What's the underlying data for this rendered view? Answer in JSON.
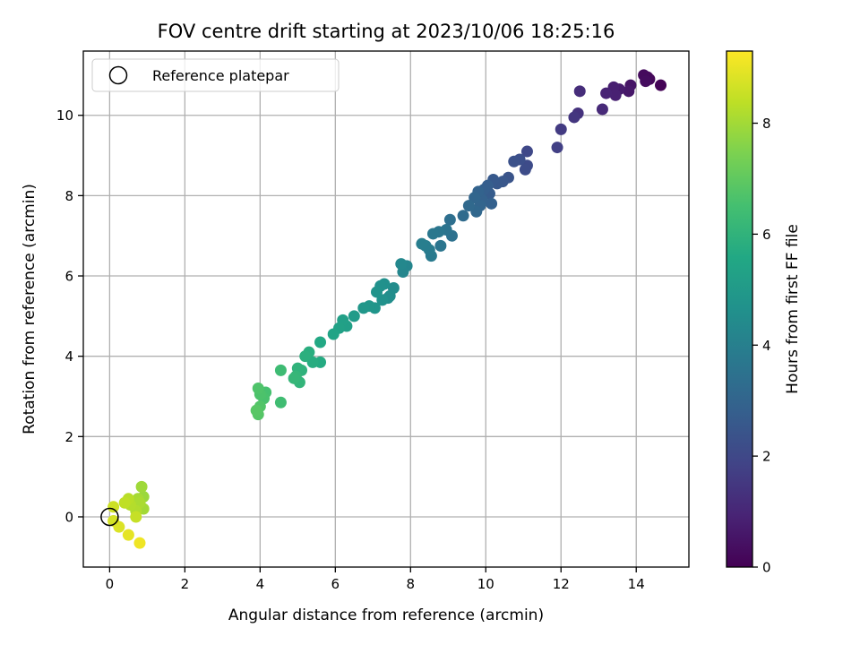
{
  "chart_data": {
    "type": "scatter",
    "title": "FOV centre drift starting at 2023/10/06 18:25:16",
    "xlabel": "Angular distance from reference (arcmin)",
    "ylabel": "Rotation from reference (arcmin)",
    "xlim": [
      -0.7,
      15.4
    ],
    "ylim": [
      -1.25,
      11.6
    ],
    "xticks": [
      0,
      2,
      4,
      6,
      8,
      10,
      12,
      14
    ],
    "yticks": [
      0,
      2,
      4,
      6,
      8,
      10
    ],
    "grid": true,
    "legend": {
      "placement": "top-left",
      "entries": [
        "Reference platepar"
      ]
    },
    "reference_point": {
      "x": 0,
      "y": 0
    },
    "colorbar": {
      "label": "Hours from first FF file",
      "range": [
        0,
        9.3
      ],
      "ticks": [
        0,
        2,
        4,
        6,
        8
      ],
      "colormap": "viridis"
    },
    "points": [
      [
        14.65,
        10.75,
        0.05
      ],
      [
        14.35,
        10.9,
        0.15
      ],
      [
        14.3,
        10.95,
        0.2
      ],
      [
        14.2,
        11.0,
        0.25
      ],
      [
        14.25,
        10.85,
        0.3
      ],
      [
        13.85,
        10.75,
        0.5
      ],
      [
        13.8,
        10.6,
        0.6
      ],
      [
        13.55,
        10.65,
        0.7
      ],
      [
        13.4,
        10.7,
        0.8
      ],
      [
        13.45,
        10.5,
        0.85
      ],
      [
        13.2,
        10.55,
        0.9
      ],
      [
        13.1,
        10.15,
        1.1
      ],
      [
        12.5,
        10.6,
        1.2
      ],
      [
        12.45,
        10.05,
        1.35
      ],
      [
        12.35,
        9.95,
        1.45
      ],
      [
        12.0,
        9.65,
        1.6
      ],
      [
        11.9,
        9.2,
        1.75
      ],
      [
        11.1,
        9.1,
        2.0
      ],
      [
        11.1,
        8.75,
        2.1
      ],
      [
        11.05,
        8.65,
        2.15
      ],
      [
        10.9,
        8.9,
        2.25
      ],
      [
        10.75,
        8.85,
        2.3
      ],
      [
        10.6,
        8.45,
        2.4
      ],
      [
        10.45,
        8.35,
        2.5
      ],
      [
        10.3,
        8.3,
        2.55
      ],
      [
        10.2,
        8.4,
        2.6
      ],
      [
        10.1,
        8.05,
        2.7
      ],
      [
        10.05,
        8.25,
        2.75
      ],
      [
        9.95,
        8.15,
        2.8
      ],
      [
        10.15,
        7.8,
        2.85
      ],
      [
        9.9,
        7.9,
        2.9
      ],
      [
        9.8,
        8.1,
        2.95
      ],
      [
        9.85,
        7.75,
        3.0
      ],
      [
        9.7,
        7.95,
        3.05
      ],
      [
        9.75,
        7.6,
        3.1
      ],
      [
        9.55,
        7.75,
        3.15
      ],
      [
        9.4,
        7.5,
        3.25
      ],
      [
        9.05,
        7.4,
        3.4
      ],
      [
        9.1,
        7.0,
        3.45
      ],
      [
        8.95,
        7.15,
        3.55
      ],
      [
        8.8,
        6.75,
        3.6
      ],
      [
        8.75,
        7.1,
        3.65
      ],
      [
        8.6,
        7.05,
        3.7
      ],
      [
        8.55,
        6.5,
        3.8
      ],
      [
        8.5,
        6.65,
        3.85
      ],
      [
        8.4,
        6.75,
        3.9
      ],
      [
        8.3,
        6.8,
        3.95
      ],
      [
        7.9,
        6.25,
        4.2
      ],
      [
        7.8,
        6.1,
        4.25
      ],
      [
        7.75,
        6.3,
        4.3
      ],
      [
        7.55,
        5.7,
        4.45
      ],
      [
        7.45,
        5.5,
        4.5
      ],
      [
        7.4,
        5.45,
        4.55
      ],
      [
        7.3,
        5.8,
        4.6
      ],
      [
        7.2,
        5.75,
        4.65
      ],
      [
        7.25,
        5.4,
        4.7
      ],
      [
        7.1,
        5.6,
        4.75
      ],
      [
        7.05,
        5.2,
        4.8
      ],
      [
        6.9,
        5.25,
        4.85
      ],
      [
        6.75,
        5.2,
        4.9
      ],
      [
        6.5,
        5.0,
        5.05
      ],
      [
        6.3,
        4.75,
        5.2
      ],
      [
        6.2,
        4.9,
        5.25
      ],
      [
        6.1,
        4.7,
        5.3
      ],
      [
        5.95,
        4.55,
        5.4
      ],
      [
        5.6,
        4.35,
        5.6
      ],
      [
        5.6,
        3.85,
        5.65
      ],
      [
        5.4,
        3.85,
        5.75
      ],
      [
        5.3,
        4.1,
        5.8
      ],
      [
        5.2,
        4.0,
        5.85
      ],
      [
        5.1,
        3.65,
        5.95
      ],
      [
        5.0,
        3.7,
        6.0
      ],
      [
        5.05,
        3.35,
        6.05
      ],
      [
        4.95,
        3.5,
        6.1
      ],
      [
        4.9,
        3.45,
        6.15
      ],
      [
        4.55,
        3.65,
        6.35
      ],
      [
        4.55,
        2.85,
        6.4
      ],
      [
        4.15,
        3.1,
        6.55
      ],
      [
        4.1,
        2.95,
        6.6
      ],
      [
        4.0,
        3.05,
        6.65
      ],
      [
        3.95,
        3.2,
        6.7
      ],
      [
        4.0,
        2.75,
        6.75
      ],
      [
        3.95,
        2.55,
        6.8
      ],
      [
        3.9,
        2.65,
        6.85
      ],
      [
        0.9,
        0.5,
        7.9
      ],
      [
        0.85,
        0.75,
        7.95
      ],
      [
        0.9,
        0.2,
        8.0
      ],
      [
        0.75,
        0.45,
        8.05
      ],
      [
        0.8,
        0.35,
        8.1
      ],
      [
        0.7,
        0.15,
        8.2
      ],
      [
        0.55,
        0.3,
        8.25
      ],
      [
        0.5,
        0.45,
        8.3
      ],
      [
        0.4,
        0.35,
        8.4
      ],
      [
        0.7,
        0.0,
        8.5
      ],
      [
        0.1,
        0.25,
        8.6
      ],
      [
        0.1,
        -0.1,
        8.7
      ],
      [
        0.25,
        -0.25,
        8.8
      ],
      [
        0.5,
        -0.45,
        8.95
      ],
      [
        0.8,
        -0.65,
        9.1
      ]
    ]
  }
}
